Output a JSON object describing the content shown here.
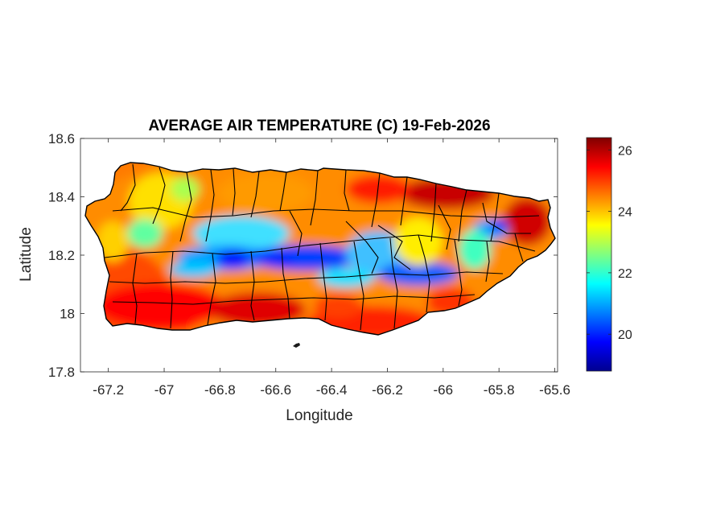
{
  "chart_data": {
    "type": "heatmap",
    "title": "AVERAGE AIR TEMPERATURE (C) 19-Feb-2026",
    "xlabel": "Longitude",
    "ylabel": "Latitude",
    "xlim": [
      -67.3,
      -65.59
    ],
    "ylim": [
      17.8,
      18.6
    ],
    "xticks": [
      -67.2,
      -67,
      -66.8,
      -66.6,
      -66.4,
      -66.2,
      -66,
      -65.8,
      -65.6
    ],
    "xtick_labels": [
      "-67.2",
      "-67",
      "-66.8",
      "-66.6",
      "-66.4",
      "-66.2",
      "-66",
      "-65.8",
      "-65.6"
    ],
    "yticks": [
      17.8,
      18,
      18.2,
      18.4,
      18.6
    ],
    "ytick_labels": [
      "17.8",
      "18",
      "18.2",
      "18.4",
      "18.6"
    ],
    "colorbar": {
      "colormap": "jet",
      "clim": [
        18.8,
        26.4
      ],
      "ticks": [
        20,
        22,
        24,
        26
      ],
      "tick_labels": [
        "20",
        "22",
        "24",
        "26"
      ],
      "colors": [
        "#00008f",
        "#0000ff",
        "#0080ff",
        "#00ffff",
        "#80ff80",
        "#ffff00",
        "#ff8000",
        "#ff0000",
        "#800000"
      ]
    },
    "region": "Puerto Rico",
    "value_summary": {
      "warm_north_east_coast": 26,
      "warm_south_coast": 25,
      "cool_central_mountains": 19.5,
      "cool_el_yunque": 20.5,
      "northwest_plateau": 23.5
    }
  }
}
